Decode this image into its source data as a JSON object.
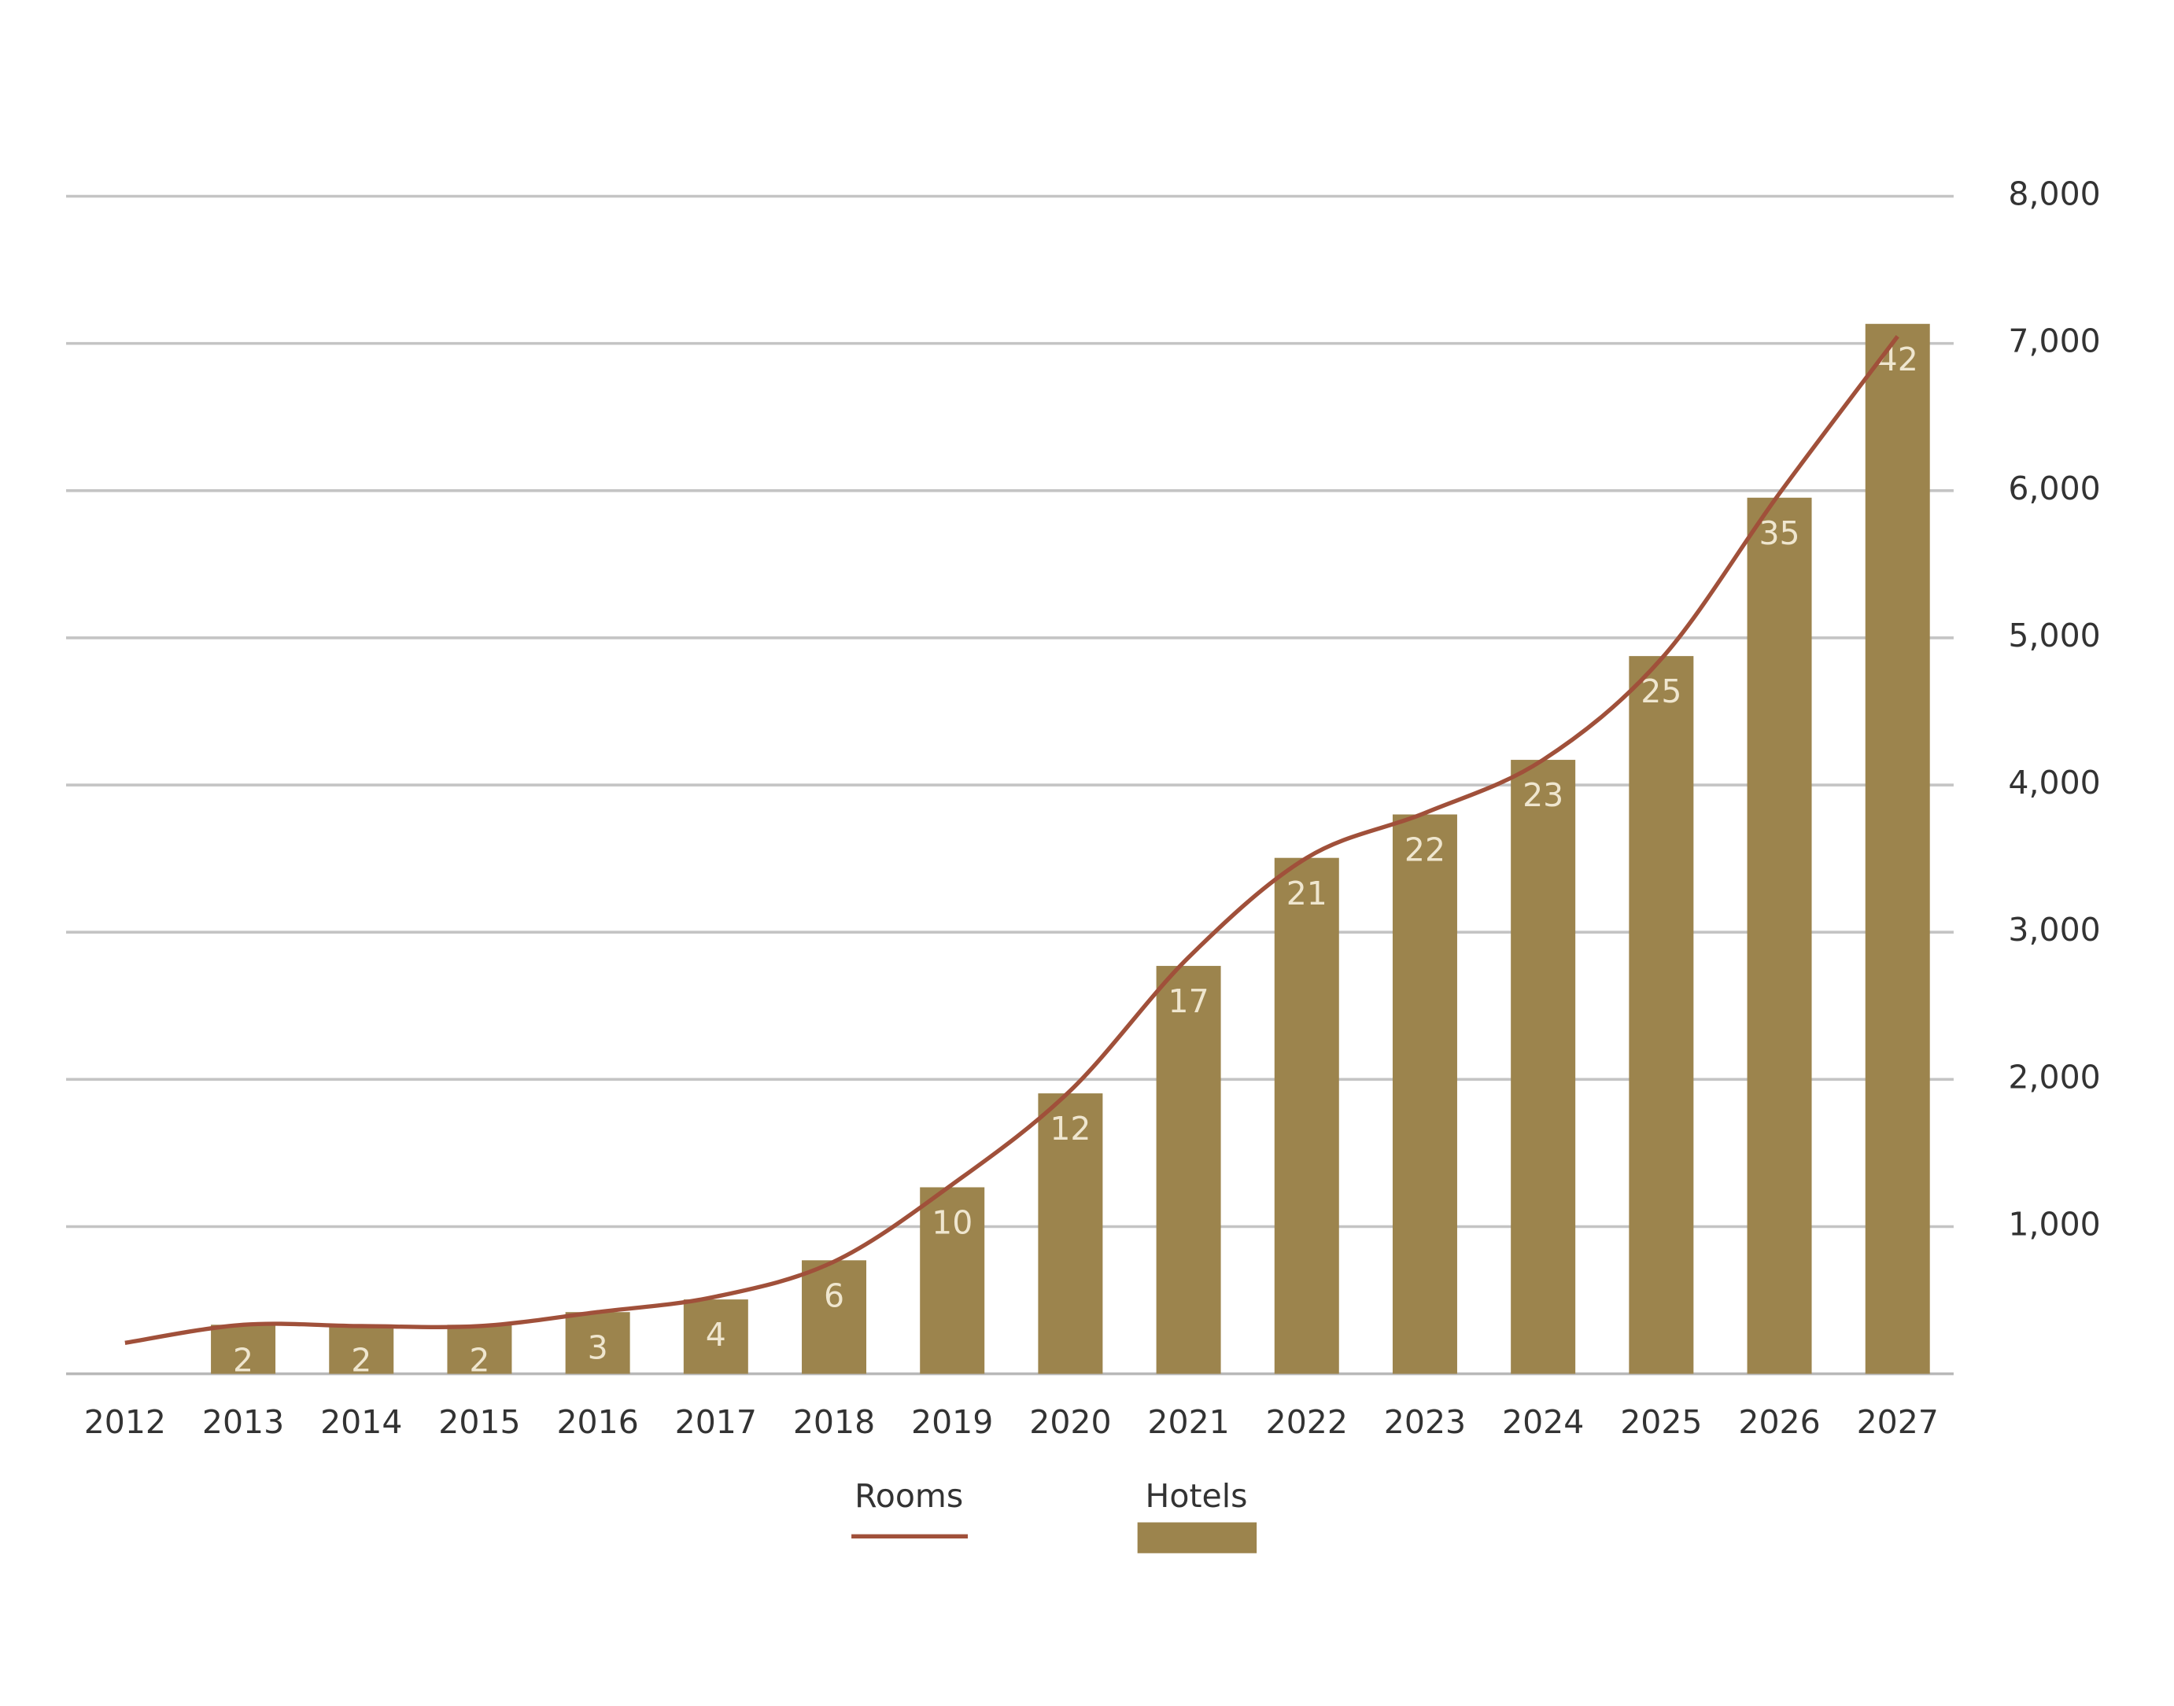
{
  "chart_data": {
    "type": "bar",
    "categories": [
      "2012",
      "2013",
      "2014",
      "2015",
      "2016",
      "2017",
      "2018",
      "2019",
      "2020",
      "2021",
      "2022",
      "2023",
      "2024",
      "2025",
      "2026",
      "2027"
    ],
    "series": [
      {
        "name": "Rooms",
        "type": "line",
        "color": "#a0503a",
        "values": [
          210,
          333,
          324,
          324,
          419,
          524,
          762,
          1286,
          1924,
          2829,
          3505,
          3810,
          4171,
          4857,
          5981,
          7048
        ]
      },
      {
        "name": "Hotels",
        "type": "bar",
        "color": "#9c844d",
        "values": [
          null,
          333,
          333,
          333,
          419,
          505,
          771,
          1267,
          1905,
          2771,
          3505,
          3800,
          4171,
          4876,
          5952,
          7133
        ],
        "value_labels": [
          null,
          "2",
          "2",
          "2",
          "3",
          "4",
          "6",
          "10",
          "12",
          "17",
          "21",
          "22",
          "23",
          "25",
          "35",
          "42"
        ]
      }
    ],
    "ylim": [
      0,
      8000
    ],
    "yticks": [
      {
        "value": 1000,
        "label": "1,000"
      },
      {
        "value": 2000,
        "label": "2,000"
      },
      {
        "value": 3000,
        "label": "3,000"
      },
      {
        "value": 4000,
        "label": "4,000"
      },
      {
        "value": 5000,
        "label": "5,000"
      },
      {
        "value": 6000,
        "label": "6,000"
      },
      {
        "value": 7000,
        "label": "7,000"
      },
      {
        "value": 8000,
        "label": "8,000"
      }
    ],
    "grid": true,
    "legend": "bottom"
  }
}
